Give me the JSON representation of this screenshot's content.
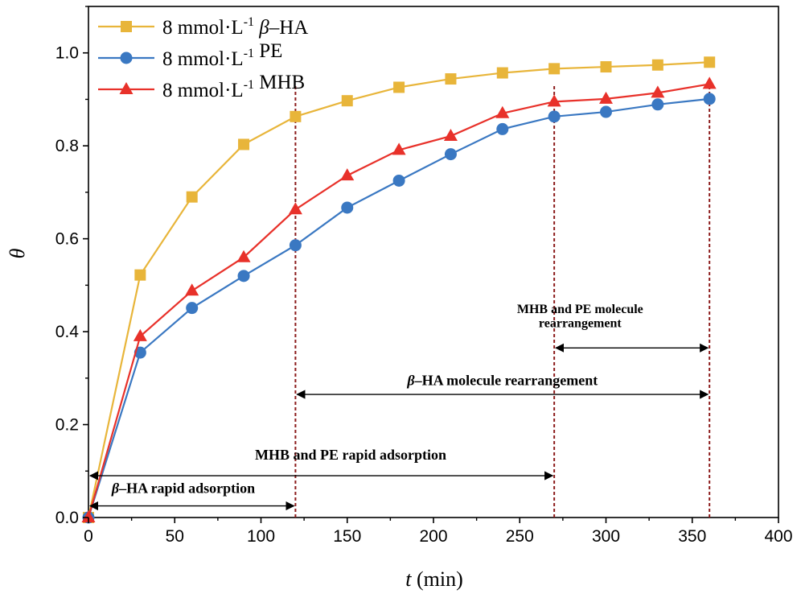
{
  "chart_data": {
    "type": "line",
    "xlabel": {
      "var": "t",
      "unit": " (min)"
    },
    "ylabel": "θ",
    "xlim": [
      0,
      400
    ],
    "ylim": [
      0,
      1.1
    ],
    "xticks": [
      "0",
      "50",
      "100",
      "150",
      "200",
      "250",
      "300",
      "350",
      "400"
    ],
    "yticks": [
      "0.0",
      "0.2",
      "0.4",
      "0.6",
      "0.8",
      "1.0"
    ],
    "grid": false,
    "legend_position": "top-left",
    "series": [
      {
        "name": "8 mmol·L-1 β–HA",
        "legend": {
          "main": "8 mmol·L",
          "sup": "-1",
          "greek": "β",
          "rest": "–HA"
        },
        "marker": "square",
        "color": "#E8B53A",
        "x": [
          0,
          30,
          60,
          90,
          120,
          150,
          180,
          210,
          240,
          270,
          300,
          330,
          360
        ],
        "y": [
          0.0,
          0.522,
          0.69,
          0.803,
          0.863,
          0.897,
          0.926,
          0.944,
          0.957,
          0.966,
          0.97,
          0.974,
          0.98
        ]
      },
      {
        "name": "8 mmol·L-1 PE",
        "legend": {
          "main": "8 mmol·L",
          "sup": "-1",
          "greek": "",
          "rest": " PE"
        },
        "marker": "circle",
        "color": "#3A78C2",
        "x": [
          0,
          30,
          60,
          90,
          120,
          150,
          180,
          210,
          240,
          270,
          300,
          330,
          360
        ],
        "y": [
          0.0,
          0.355,
          0.451,
          0.52,
          0.586,
          0.667,
          0.725,
          0.782,
          0.836,
          0.863,
          0.873,
          0.889,
          0.901
        ]
      },
      {
        "name": "8 mmol·L-1 MHB",
        "legend": {
          "main": "8 mmol·L",
          "sup": "-1",
          "greek": "",
          "rest": " MHB"
        },
        "marker": "triangle",
        "color": "#E8312A",
        "x": [
          0,
          30,
          60,
          90,
          120,
          150,
          180,
          210,
          240,
          270,
          300,
          330,
          360
        ],
        "y": [
          0.0,
          0.39,
          0.488,
          0.56,
          0.663,
          0.736,
          0.791,
          0.821,
          0.87,
          0.895,
          0.901,
          0.914,
          0.933
        ]
      }
    ],
    "vlines": [
      {
        "x": 120,
        "color": "#8B1A1A"
      },
      {
        "x": 270,
        "color": "#8B1A1A"
      },
      {
        "x": 360,
        "color": "#8B1A1A"
      }
    ],
    "annotations": [
      {
        "text": "MHB and PE molecule",
        "x": 285,
        "y": 0.44,
        "anchor": "middle-center",
        "big": false
      },
      {
        "text": "rearrangement",
        "x": 285,
        "y": 0.41,
        "anchor": "middle-center",
        "big": false
      },
      {
        "text": "HA molecule rearrangement",
        "greek": "β",
        "dash": "–",
        "x": 240,
        "y": 0.285,
        "big": true
      },
      {
        "text": "MHB  and PE  rapid adsorption",
        "x": 152,
        "y": 0.125,
        "big": true
      },
      {
        "text": "HA rapid adsorption",
        "greek": "β",
        "dash": "–",
        "x": 55,
        "y": 0.053,
        "big": true
      }
    ],
    "arrows": [
      {
        "x1": 270,
        "x2": 360,
        "y": 0.365
      },
      {
        "x1": 120,
        "x2": 360,
        "y": 0.265
      },
      {
        "x1": 0,
        "x2": 270,
        "y": 0.09
      },
      {
        "x1": 0,
        "x2": 120,
        "y": 0.025
      }
    ]
  }
}
